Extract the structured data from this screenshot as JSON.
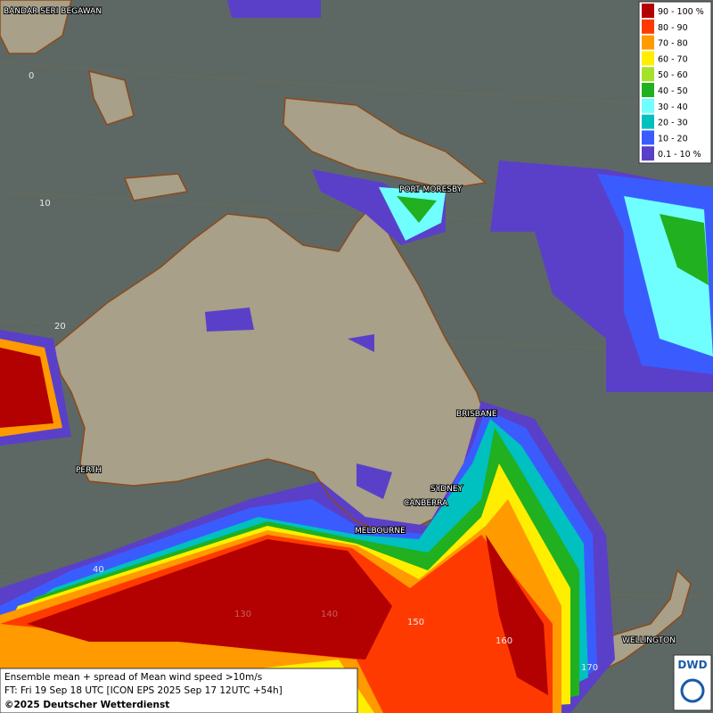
{
  "legend": [
    {
      "label": "90 - 100 %",
      "color": "#b30000"
    },
    {
      "label": "80 - 90",
      "color": "#ff3a00"
    },
    {
      "label": "70 - 80",
      "color": "#ff9a00"
    },
    {
      "label": "60 - 70",
      "color": "#ffee00"
    },
    {
      "label": "50 - 60",
      "color": "#a6e22a"
    },
    {
      "label": "40 - 50",
      "color": "#20b020"
    },
    {
      "label": "30 - 40",
      "color": "#70ffff"
    },
    {
      "label": "20 - 30",
      "color": "#00c0c0"
    },
    {
      "label": "10 - 20",
      "color": "#3a5cff"
    },
    {
      "label": "0.1 - 10 %",
      "color": "#5a40c8"
    }
  ],
  "places": [
    "BANDAR SERI BEGAWAN",
    "PORT MORESBY",
    "BRISBANE",
    "PERTH",
    "SYDNEY",
    "CANBERRA",
    "MELBOURNE",
    "WELLINGTON"
  ],
  "grid_labels": [
    "0",
    "10",
    "20",
    "40",
    "130",
    "140",
    "150",
    "160",
    "170"
  ],
  "caption": [
    "Ensemble mean + spread of Mean wind speed >10m/s",
    "FT: Fri 19 Sep 18 UTC [ICON EPS 2025 Sep 17 12UTC +54h]",
    "©2025 Deutscher Wetterdienst"
  ],
  "logo": "DWD"
}
